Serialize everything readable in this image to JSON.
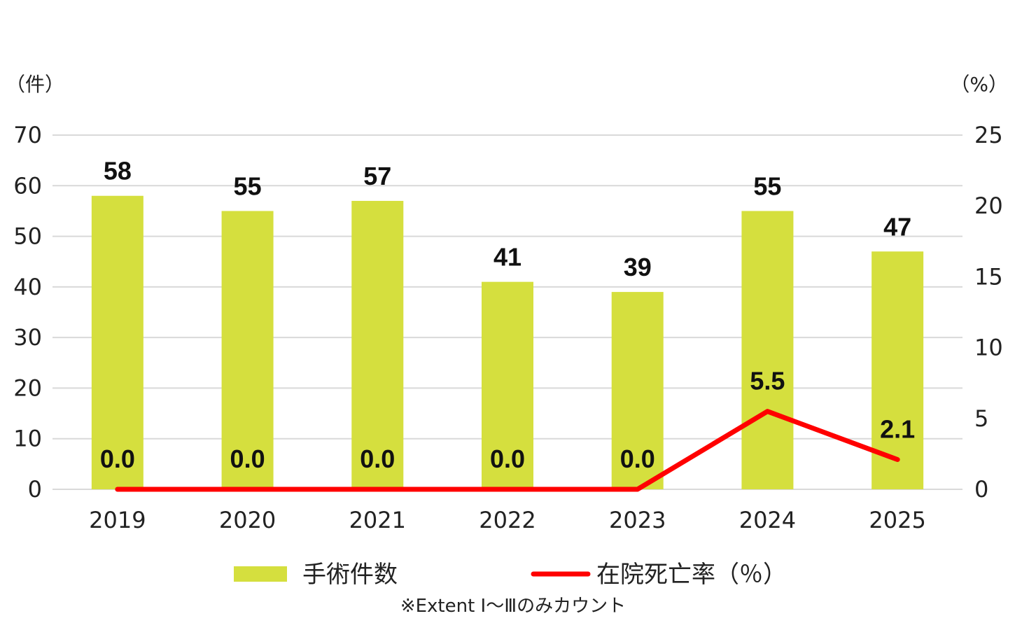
{
  "chart_data": {
    "type": "bar+line",
    "categories": [
      "2019",
      "2020",
      "2021",
      "2022",
      "2023",
      "2024",
      "2025"
    ],
    "series": [
      {
        "name": "手術件数",
        "type": "bar",
        "axis": "left",
        "values": [
          58,
          55,
          57,
          41,
          39,
          55,
          47
        ],
        "labels": [
          "58",
          "55",
          "57",
          "41",
          "39",
          "55",
          "47"
        ],
        "color": "#d5df3e"
      },
      {
        "name": "在院死亡率（％）",
        "type": "line",
        "axis": "right",
        "values": [
          0.0,
          0.0,
          0.0,
          0.0,
          0.0,
          5.5,
          2.1
        ],
        "labels": [
          "0.0",
          "0.0",
          "0.0",
          "0.0",
          "0.0",
          "5.5",
          "2.1"
        ],
        "color": "#ff0000"
      }
    ],
    "left_axis": {
      "unit": "（件）",
      "ylim": [
        0,
        70
      ],
      "ticks": [
        "0",
        "10",
        "20",
        "30",
        "40",
        "50",
        "60",
        "70"
      ]
    },
    "right_axis": {
      "unit": "（%）",
      "ylim": [
        0,
        25
      ],
      "ticks": [
        "0",
        "5",
        "10",
        "15",
        "20",
        "25"
      ]
    },
    "grid": true,
    "legend_position": "bottom",
    "note": "※Extent Ⅰ～Ⅲのみカウント"
  }
}
